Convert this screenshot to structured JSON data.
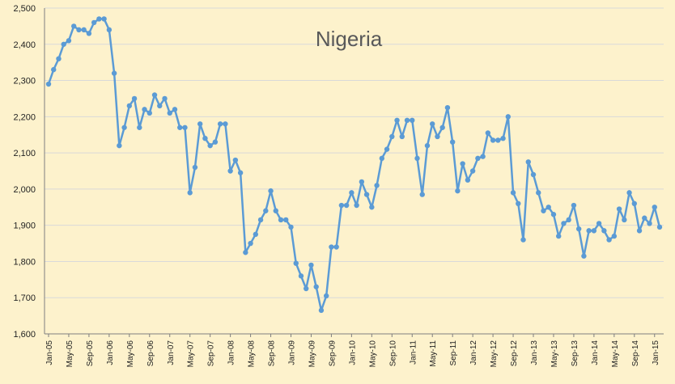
{
  "chart_data": {
    "type": "line",
    "title": "Nigeria",
    "xlabel": "",
    "ylabel": "",
    "ylim": [
      1600,
      2500
    ],
    "yticks": [
      "1,600",
      "1,700",
      "1,800",
      "1,900",
      "2,000",
      "2,100",
      "2,200",
      "2,300",
      "2,400",
      "2,500"
    ],
    "yticks_values": [
      1600,
      1700,
      1800,
      1900,
      2000,
      2100,
      2200,
      2300,
      2400,
      2500
    ],
    "grid": true,
    "line_color": "#5b9bd5",
    "background_color": "#fdf2cc",
    "xtick_labels": [
      "Jan-05",
      "May-05",
      "Sep-05",
      "Jan-06",
      "May-06",
      "Sep-06",
      "Jan-07",
      "May-07",
      "Sep-07",
      "Jan-08",
      "May-08",
      "Sep-08",
      "Jan-09",
      "May-09",
      "Sep-09",
      "Jan-10",
      "May-10",
      "Sep-10",
      "Jan-11",
      "May-11",
      "Sep-11",
      "Jan-12",
      "May-12",
      "Sep-12",
      "Jan-13",
      "May-13",
      "Sep-13",
      "Jan-14",
      "May-14",
      "Sep-14",
      "Jan-15"
    ],
    "xtick_every": 4,
    "x_start": "Jan-05",
    "x_end": "Mar-15",
    "values": [
      2290,
      2330,
      2360,
      2400,
      2410,
      2450,
      2440,
      2440,
      2430,
      2460,
      2470,
      2470,
      2440,
      2320,
      2120,
      2170,
      2230,
      2250,
      2170,
      2220,
      2210,
      2260,
      2230,
      2250,
      2210,
      2220,
      2170,
      2170,
      1990,
      2060,
      2180,
      2140,
      2120,
      2130,
      2180,
      2180,
      2050,
      2080,
      2045,
      1825,
      1850,
      1875,
      1915,
      1940,
      1995,
      1940,
      1915,
      1915,
      1895,
      1795,
      1760,
      1725,
      1790,
      1730,
      1665,
      1705,
      1840,
      1840,
      1955,
      1955,
      1990,
      1955,
      2020,
      1985,
      1950,
      2010,
      2085,
      2110,
      2145,
      2190,
      2145,
      2190,
      2190,
      2085,
      1985,
      2120,
      2180,
      2145,
      2170,
      2225,
      2130,
      1995,
      2070,
      2025,
      2050,
      2085,
      2090,
      2155,
      2135,
      2135,
      2140,
      2200,
      1990,
      1960,
      1860,
      2075,
      2040,
      1990,
      1940,
      1950,
      1930,
      1870,
      1905,
      1915,
      1955,
      1890,
      1815,
      1885,
      1885,
      1905,
      1885,
      1860,
      1870,
      1945,
      1915,
      1990,
      1960,
      1885,
      1920,
      1905,
      1950,
      1895
    ]
  }
}
